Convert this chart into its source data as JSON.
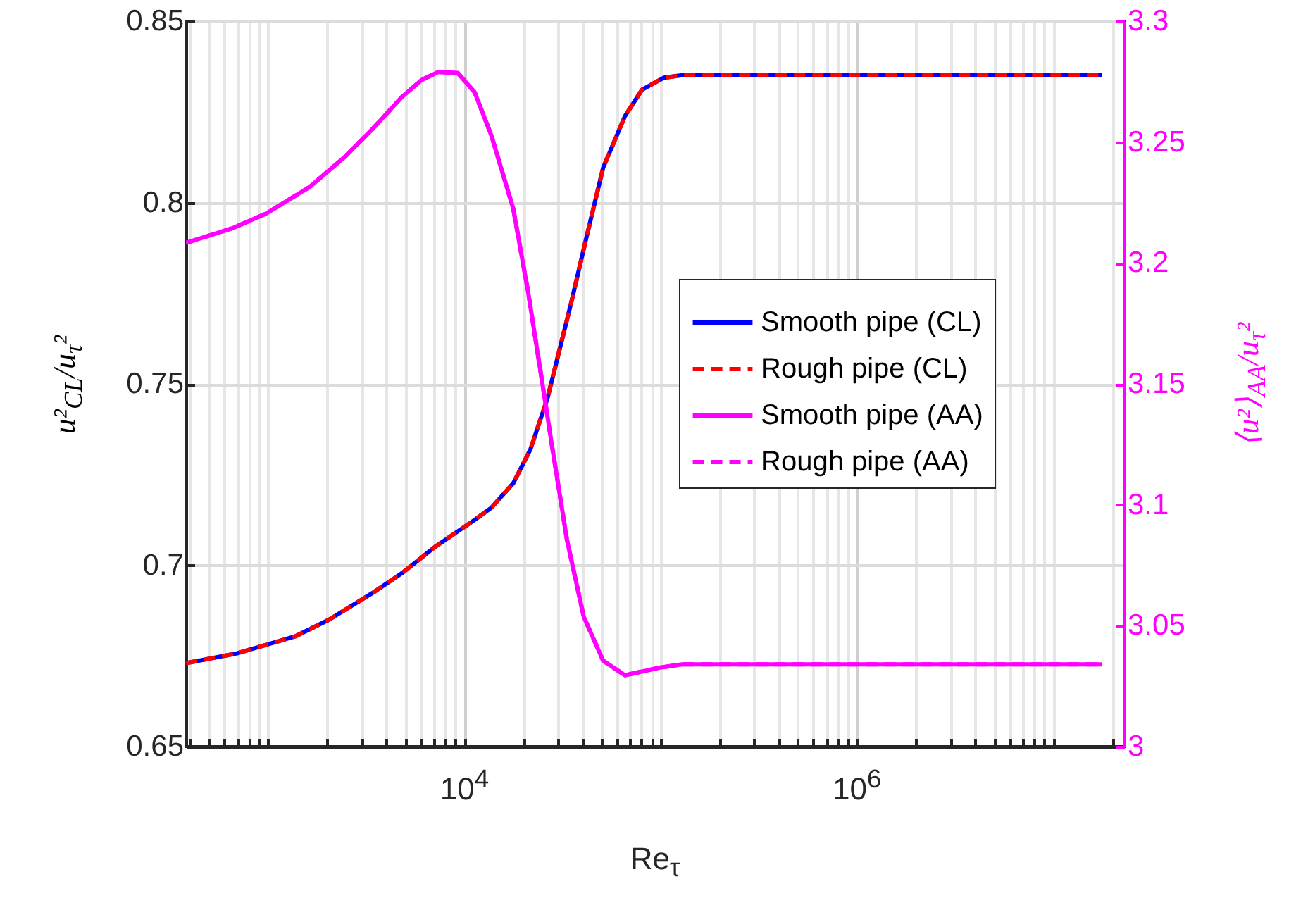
{
  "chart_data": {
    "type": "line",
    "xlabel": "Re$_{τ}$",
    "ylabel": "u²$_{CL}$/u$_{τ}$²",
    "y2label": "⟨u²⟩$_{AA}$/u$_{τ}$²",
    "log": "x",
    "grid": true,
    "legend": "right",
    "xlim": [
      381,
      23000000
    ],
    "ylim": [
      0.65,
      0.85
    ],
    "y2lim": [
      3,
      3.3
    ],
    "yticks": [
      0.65,
      0.7,
      0.75,
      0.8,
      0.85
    ],
    "y2ticks": [
      3,
      3.05,
      3.1,
      3.15,
      3.2,
      3.25,
      3.3
    ],
    "xticks": [
      {
        "value": 400,
        "label": null
      },
      {
        "value": 500,
        "label": null
      },
      {
        "value": 600,
        "label": null
      },
      {
        "value": 700,
        "label": null
      },
      {
        "value": 800,
        "label": null
      },
      {
        "value": 900,
        "label": null
      },
      {
        "value": 1000,
        "label": null
      },
      {
        "value": 2000,
        "label": null
      },
      {
        "value": 3000,
        "label": null
      },
      {
        "value": 4000,
        "label": null
      },
      {
        "value": 5000,
        "label": null
      },
      {
        "value": 6000,
        "label": null
      },
      {
        "value": 7000,
        "label": null
      },
      {
        "value": 8000,
        "label": null
      },
      {
        "value": 9000,
        "label": null
      },
      {
        "value": 10000,
        "label": "10$^{4}$"
      },
      {
        "value": 20000,
        "label": null
      },
      {
        "value": 30000,
        "label": null
      },
      {
        "value": 40000,
        "label": null
      },
      {
        "value": 50000,
        "label": null
      },
      {
        "value": 60000,
        "label": null
      },
      {
        "value": 70000,
        "label": null
      },
      {
        "value": 80000,
        "label": null
      },
      {
        "value": 90000,
        "label": null
      },
      {
        "value": 100000,
        "label": null
      },
      {
        "value": 200000,
        "label": null
      },
      {
        "value": 300000,
        "label": null
      },
      {
        "value": 400000,
        "label": null
      },
      {
        "value": 500000,
        "label": null
      },
      {
        "value": 600000,
        "label": null
      },
      {
        "value": 700000,
        "label": null
      },
      {
        "value": 800000,
        "label": null
      },
      {
        "value": 900000,
        "label": null
      },
      {
        "value": 1000000,
        "label": "10$^{6}$"
      },
      {
        "value": 2000000,
        "label": null
      },
      {
        "value": 3000000,
        "label": null
      },
      {
        "value": 4000000,
        "label": null
      },
      {
        "value": 5000000,
        "label": null
      },
      {
        "value": 6000000,
        "label": null
      },
      {
        "value": 7000000,
        "label": null
      },
      {
        "value": 8000000,
        "label": null
      },
      {
        "value": 9000000,
        "label": null
      },
      {
        "value": 10000000,
        "label": null
      },
      {
        "value": 20000000,
        "label": null
      }
    ],
    "series": [
      {
        "name": "Smooth pipe (CL)",
        "color": "#0000ff",
        "line_style": "solid",
        "x": [
          381,
          693,
          1374,
          2042,
          3410,
          4800,
          7140,
          11270,
          13750,
          17740,
          21680,
          26490,
          35160,
          41780,
          50930,
          65770,
          80350,
          103700,
          129000,
          17700000
        ],
        "values": [
          0.673,
          0.6757,
          0.6804,
          0.685,
          0.6924,
          0.6978,
          0.7052,
          0.7125,
          0.7159,
          0.7226,
          0.7319,
          0.746,
          0.7728,
          0.7902,
          0.8096,
          0.8238,
          0.8311,
          0.8344,
          0.8351,
          0.8351
        ]
      },
      {
        "name": "Rough pipe (CL)",
        "color": "#ff0000",
        "line_style": "dashed",
        "x": [
          381,
          693,
          1374,
          2042,
          3410,
          4800,
          7140,
          11270,
          13750,
          17740,
          21680,
          26490,
          35160,
          41780,
          50930,
          65770,
          80350,
          103700,
          129000,
          17700000
        ],
        "values": [
          0.673,
          0.6757,
          0.6804,
          0.685,
          0.6924,
          0.6978,
          0.7052,
          0.7125,
          0.7159,
          0.7226,
          0.7319,
          0.746,
          0.7728,
          0.7902,
          0.8096,
          0.8238,
          0.8311,
          0.8344,
          0.8351,
          0.8351
        ]
      },
      {
        "name": "Smooth pipe (AA)",
        "color": "#ff00ff",
        "line_style": "solid",
        "axis": "y2",
        "x": [
          381,
          655,
          975,
          1626,
          2421,
          3410,
          4800,
          6030,
          7360,
          9250,
          11270,
          13750,
          17740,
          21090,
          24320,
          27990,
          33270,
          40550,
          50930,
          65770,
          97950,
          128800,
          17700000
        ],
        "values": [
          3.2083,
          3.2143,
          3.2204,
          3.2314,
          3.2434,
          3.2555,
          3.2686,
          3.2756,
          3.279,
          3.2786,
          3.2706,
          3.2525,
          3.2224,
          3.1882,
          3.1561,
          3.124,
          3.0857,
          3.0537,
          3.0355,
          3.0295,
          3.0326,
          3.034,
          3.034
        ]
      },
      {
        "name": "Rough pipe (AA)",
        "color": "#ff00ff",
        "line_style": "dashed",
        "axis": "y2",
        "x": [
          381,
          655,
          975,
          1626,
          2421,
          3410,
          4800,
          6030,
          7360,
          9250,
          11270,
          13750,
          17740,
          21090,
          24320,
          27990,
          33270,
          40550,
          50930,
          65770,
          97950,
          128800,
          17700000
        ],
        "values": [
          3.2083,
          3.2143,
          3.2204,
          3.2314,
          3.2434,
          3.2555,
          3.2686,
          3.2756,
          3.279,
          3.2786,
          3.2706,
          3.2525,
          3.2224,
          3.1882,
          3.1561,
          3.124,
          3.0857,
          3.0537,
          3.0355,
          3.0295,
          3.0326,
          3.034,
          3.034
        ]
      }
    ]
  }
}
